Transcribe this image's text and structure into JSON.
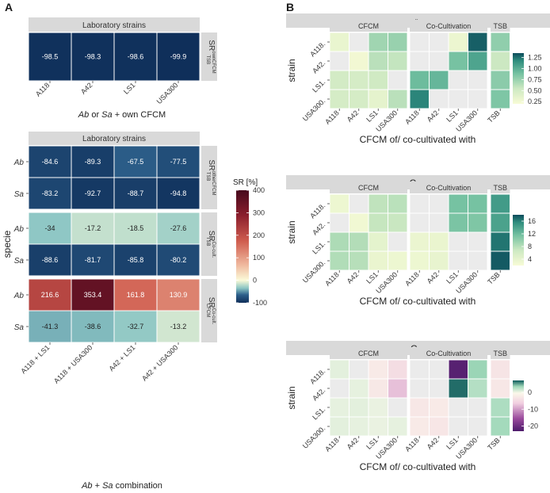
{
  "panels": {
    "a": "A",
    "b": "B"
  },
  "chart_data": [
    {
      "id": "A1",
      "type": "heatmap",
      "panel": "A",
      "strip_title": "Laboratory strains",
      "row_facet": "SR ownCFCM TSB",
      "categories": [
        "A118",
        "A42",
        "LS1",
        "USA300"
      ],
      "rows": [
        {
          "label": "",
          "values": [
            -98.5,
            -98.3,
            -98.6,
            -99.9
          ]
        }
      ],
      "xlabel": "Ab or Sa + own CFCM"
    },
    {
      "id": "A2",
      "type": "heatmap",
      "panel": "A",
      "strip_title": "Laboratory strains",
      "ylabel": "specie",
      "xlabel": "Ab + Sa combination",
      "categories": [
        "A118 + LS1",
        "A118 + USA300",
        "A42 + LS1",
        "A42 + USA300"
      ],
      "facets": [
        {
          "label": "SR otherCFCM TSB",
          "rows": [
            {
              "label": "Ab",
              "values": [
                -84.6,
                -89.3,
                -67.5,
                -77.5
              ]
            },
            {
              "label": "Sa",
              "values": [
                -83.2,
                -92.7,
                -88.7,
                -94.8
              ]
            }
          ]
        },
        {
          "label": "SR Co-cult. TSB",
          "rows": [
            {
              "label": "Ab",
              "values": [
                -34,
                -17.2,
                -18.5,
                -27.6
              ]
            },
            {
              "label": "Sa",
              "values": [
                -88.6,
                -81.7,
                -85.8,
                -80.2
              ]
            }
          ]
        },
        {
          "label": "SR Co-cult. CFCM",
          "rows": [
            {
              "label": "Ab",
              "values": [
                216.6,
                353.4,
                161.8,
                130.9
              ]
            },
            {
              "label": "Sa",
              "values": [
                -41.3,
                -38.6,
                -32.7,
                -13.2
              ]
            }
          ]
        }
      ],
      "legend": {
        "title": "SR [%]",
        "range": [
          -100,
          400
        ],
        "ticks": [
          400,
          300,
          200,
          100,
          0,
          -100
        ]
      }
    },
    {
      "id": "B1",
      "type": "heatmap",
      "panel": "B",
      "title": "rg",
      "strips": [
        "CFCM",
        "Co-Cultivation",
        "TSB"
      ],
      "rows": [
        "A118",
        "A42",
        "LS1",
        "USA300"
      ],
      "cols": [
        "A118",
        "A42",
        "LS1",
        "USA300",
        "A118",
        "A42",
        "LS1",
        "USA300",
        "TSB"
      ],
      "values": [
        [
          0.32,
          null,
          0.72,
          0.75,
          null,
          null,
          0.3,
          1.3,
          0.78
        ],
        [
          null,
          0.25,
          0.62,
          0.58,
          null,
          null,
          0.88,
          1.05,
          0.55
        ],
        [
          0.5,
          0.48,
          0.52,
          null,
          0.92,
          0.95,
          null,
          null,
          0.8
        ],
        [
          0.48,
          0.48,
          0.35,
          0.62,
          1.2,
          null,
          null,
          null,
          0.85
        ]
      ],
      "xlabel": "CFCM of/ co-cultivated with",
      "ylabel": "strain",
      "legend": {
        "ticks": [
          "1.25",
          "1.00",
          "0.75",
          "0.50",
          "0.25"
        ],
        "range": [
          0.2,
          1.35
        ]
      }
    },
    {
      "id": "B2",
      "type": "heatmap",
      "panel": "B",
      "title": "Cend",
      "strips": [
        "CFCM",
        "Co-Cultivation",
        "TSB"
      ],
      "rows": [
        "A118",
        "A42",
        "LS1",
        "USA300"
      ],
      "cols": [
        "A118",
        "A42",
        "LS1",
        "USA300",
        "A118",
        "A42",
        "LS1",
        "USA300",
        "TSB"
      ],
      "values": [
        [
          3.2,
          null,
          7.5,
          7.8,
          null,
          null,
          11.5,
          11.5,
          14.5
        ],
        [
          null,
          2.8,
          7.2,
          7.0,
          null,
          null,
          11.2,
          11.0,
          14.0
        ],
        [
          8.5,
          8.2,
          4.2,
          null,
          3.5,
          3.6,
          null,
          null,
          16.5
        ],
        [
          8.3,
          8.0,
          3.6,
          3.2,
          3.2,
          3.8,
          null,
          null,
          17.5
        ]
      ],
      "xlabel": "CFCM of/ co-cultivated with",
      "ylabel": "strain",
      "legend": {
        "ticks": [
          "16",
          "12",
          "8",
          "4"
        ],
        "range": [
          2,
          18
        ]
      }
    },
    {
      "id": "B3",
      "type": "heatmap",
      "panel": "B",
      "title": "Cdiff",
      "strips": [
        "CFCM",
        "Co-Cultivation",
        "TSB"
      ],
      "rows": [
        "A118",
        "A42",
        "LS1",
        "USA300"
      ],
      "cols": [
        "A118",
        "A42",
        "LS1",
        "USA300",
        "A118",
        "A42",
        "LS1",
        "USA300",
        "TSB"
      ],
      "values": [
        [
          0.5,
          null,
          -2.5,
          -4.5,
          null,
          null,
          -22,
          3.5,
          -3.5
        ],
        [
          null,
          0.4,
          -2.8,
          -7.5,
          null,
          null,
          6.5,
          2.5,
          -3.0
        ],
        [
          0.4,
          0.5,
          0.2,
          null,
          -3.0,
          -2.5,
          null,
          null,
          2.8
        ],
        [
          0.5,
          0.4,
          0.2,
          0.4,
          -2.5,
          -3.2,
          null,
          null,
          3.2
        ]
      ],
      "xlabel": "CFCM of/ co-cultivated with",
      "ylabel": "strain",
      "legend": {
        "ticks": [
          "0",
          "-10",
          "-20"
        ],
        "range": [
          -23,
          7
        ]
      }
    }
  ]
}
